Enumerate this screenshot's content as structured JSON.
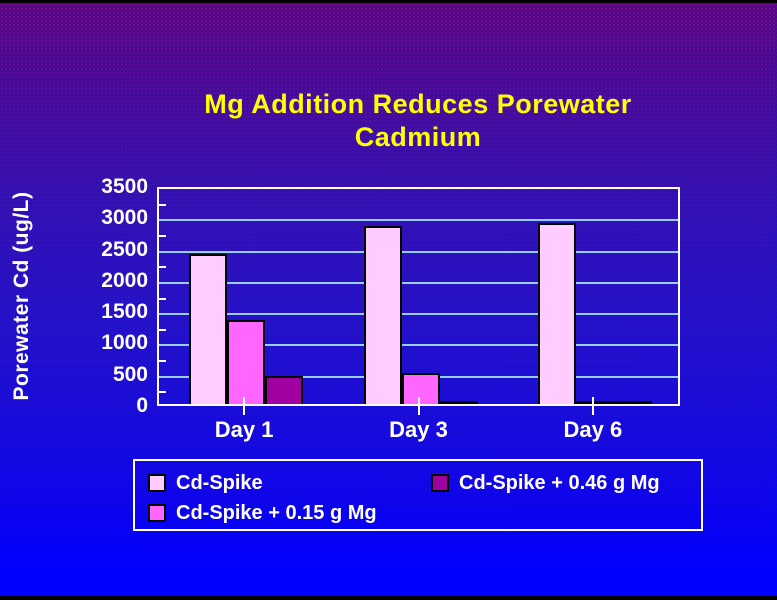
{
  "slide": {
    "title_line1": "Mg Addition Reduces Porewater",
    "title_line2": "Cadmium"
  },
  "chart_data": {
    "type": "bar",
    "title": "Mg Addition Reduces Porewater Cadmium",
    "categories": [
      "Day 1",
      "Day 3",
      "Day 6"
    ],
    "series": [
      {
        "name": "Cd-Spike",
        "color": "#ffccff",
        "values": [
          2400,
          2850,
          2900
        ]
      },
      {
        "name": "Cd-Spike + 0.15 g Mg",
        "color": "#ff66ff",
        "values": [
          1350,
          500,
          0
        ]
      },
      {
        "name": "Cd-Spike + 0.46 g Mg",
        "color": "#a000a0",
        "values": [
          450,
          0,
          0
        ]
      }
    ],
    "xlabel": "",
    "ylabel": "Porewater Cd (ug/L)",
    "ylim": [
      0,
      3500
    ],
    "ytick_step": 500,
    "ytick_labels": [
      "3500",
      "3000",
      "2500",
      "2000",
      "1500",
      "1000",
      "500",
      "0"
    ],
    "grid": true,
    "legend_position": "bottom",
    "legend_order": [
      0,
      2,
      1
    ]
  },
  "colors": {
    "title": "#ffff00",
    "axis_text": "#ffffff",
    "gridline": "#99ccff",
    "axis_line": "#ffffff",
    "bar_outline": "#000000"
  }
}
